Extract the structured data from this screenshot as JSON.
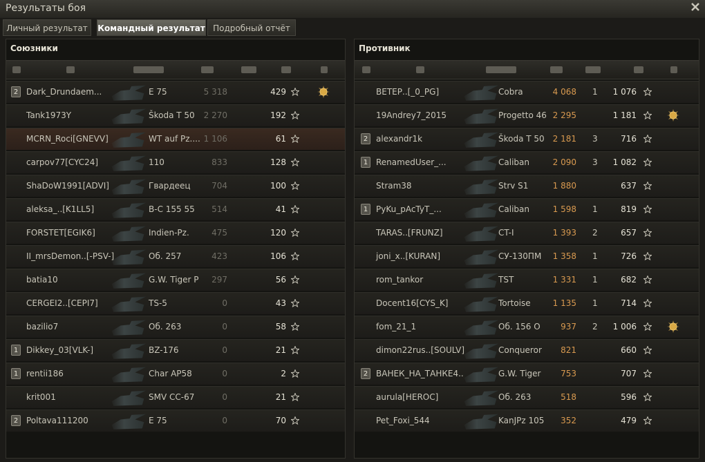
{
  "header": {
    "title": "Результаты боя"
  },
  "tabs": [
    {
      "label": "Личный результат",
      "active": false
    },
    {
      "label": "Командный результат",
      "active": true
    },
    {
      "label": "Подробный отчёт",
      "active": false
    }
  ],
  "teams": [
    {
      "title": "Союзники",
      "side": "left",
      "rows": [
        {
          "platoon": "2",
          "name": "Dark_Drundaem...",
          "vehicle": "E 75",
          "damage": "5 318",
          "xp": "429",
          "medal": true
        },
        {
          "name": "Tank1973Y",
          "vehicle": "Škoda T 50",
          "damage": "2 270",
          "xp": "192"
        },
        {
          "name": "MCRN_Roci[GNEVV]",
          "vehicle": "WT auf Pz....",
          "damage": "1 106",
          "xp": "61",
          "highlighted": true
        },
        {
          "name": "carpov77[CYC24]",
          "vehicle": "110",
          "damage": "833",
          "xp": "128"
        },
        {
          "name": "ShaDoW1991[ADVI]",
          "vehicle": "Гвардеец",
          "damage": "704",
          "xp": "100"
        },
        {
          "name": "aleksa_..[K1LL5]",
          "vehicle": "B-C 155 55",
          "damage": "514",
          "xp": "41"
        },
        {
          "name": "FORSTET[EGIK6]",
          "vehicle": "Indien-Pz.",
          "damage": "475",
          "xp": "120"
        },
        {
          "name": "II_mrsDemon..[-PSV-]",
          "vehicle": "Об. 257",
          "damage": "423",
          "xp": "106"
        },
        {
          "name": "batia10",
          "vehicle": "G.W. Tiger P",
          "damage": "297",
          "xp": "56"
        },
        {
          "name": "CERGEI2..[CEPI7]",
          "vehicle": "TS-5",
          "damage": "0",
          "xp": "43"
        },
        {
          "name": "bazilio7",
          "vehicle": "Об. 263",
          "damage": "0",
          "xp": "58"
        },
        {
          "platoon": "1",
          "name": "Dikkey_03[VLK-]",
          "vehicle": "BZ-176",
          "damage": "0",
          "xp": "21"
        },
        {
          "platoon": "1",
          "name": "rentii186",
          "vehicle": "Char AP58",
          "damage": "0",
          "xp": "2"
        },
        {
          "name": "krit001",
          "vehicle": "SMV CC-67",
          "damage": "0",
          "xp": "21"
        },
        {
          "platoon": "2",
          "name": "Poltava111200",
          "vehicle": "E 75",
          "damage": "0",
          "xp": "70"
        }
      ]
    },
    {
      "title": "Противник",
      "side": "right",
      "rows": [
        {
          "name": "ВЕТЕР..[_0_PG]",
          "vehicle": "Cobra",
          "damage": "4 068",
          "kills": "1",
          "xp": "1 076"
        },
        {
          "name": "19Andrey7_2015",
          "vehicle": "Progetto 46",
          "damage": "2 295",
          "xp": "1 181",
          "medal": true
        },
        {
          "platoon": "2",
          "name": "alexandr1k",
          "vehicle": "Škoda T 50",
          "damage": "2 181",
          "kills": "3",
          "xp": "716"
        },
        {
          "platoon": "1",
          "name": "RenamedUser_...",
          "vehicle": "Caliban",
          "damage": "2 090",
          "kills": "3",
          "xp": "1 082"
        },
        {
          "name": "Stram38",
          "vehicle": "Strv S1",
          "damage": "1 880",
          "xp": "637"
        },
        {
          "platoon": "1",
          "name": "PyKu_pAcTyT_...",
          "vehicle": "Caliban",
          "damage": "1 598",
          "kills": "1",
          "xp": "819"
        },
        {
          "name": "TARAS..[FRUNZ]",
          "vehicle": "CT-I",
          "damage": "1 393",
          "kills": "2",
          "xp": "657"
        },
        {
          "name": "joni_x..[KURAN]",
          "vehicle": "СУ-130ПМ",
          "damage": "1 358",
          "kills": "1",
          "xp": "726"
        },
        {
          "name": "rom_tankor",
          "vehicle": "TST",
          "damage": "1 331",
          "kills": "1",
          "xp": "682"
        },
        {
          "name": "Docent16[CYS_K]",
          "vehicle": "Tortoise",
          "damage": "1 135",
          "kills": "1",
          "xp": "714"
        },
        {
          "name": "fom_21_1",
          "vehicle": "Об. 156 О",
          "damage": "937",
          "kills": "2",
          "xp": "1 006",
          "medal": true
        },
        {
          "name": "dimon22rus..[SOULV]",
          "vehicle": "Conqueror",
          "damage": "821",
          "xp": "660"
        },
        {
          "platoon": "2",
          "name": "ВАНЕК_НА_ТАНКЕ4..",
          "vehicle": "G.W. Tiger",
          "damage": "753",
          "xp": "707"
        },
        {
          "name": "aurula[HEROC]",
          "vehicle": "Об. 263",
          "damage": "518",
          "xp": "596"
        },
        {
          "name": "Pet_Foxi_544",
          "vehicle": "KanJPz 105",
          "damage": "352",
          "xp": "479"
        }
      ]
    }
  ]
}
